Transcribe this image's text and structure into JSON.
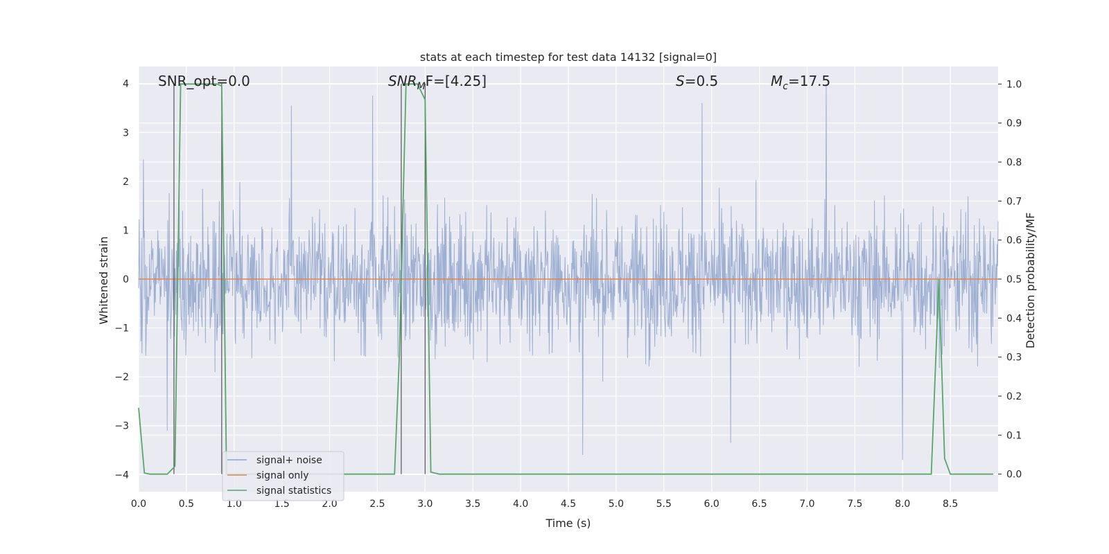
{
  "chart_data": {
    "type": "line",
    "title": "stats at each timestep for test data 14132 [signal=0]",
    "xlabel": "Time (s)",
    "ylabel": "Whitened strain",
    "ylabel_right": "Detection probability/MF",
    "xlim": [
      0.0,
      9.0
    ],
    "ylim": [
      -4.35,
      4.35
    ],
    "ylim_right": [
      -0.045,
      1.045
    ],
    "xticks": [
      "0.0",
      "0.5",
      "1.0",
      "1.5",
      "2.0",
      "2.5",
      "3.0",
      "3.5",
      "4.0",
      "4.5",
      "5.0",
      "5.5",
      "6.0",
      "6.5",
      "7.0",
      "7.5",
      "8.0",
      "8.5"
    ],
    "yticks": [
      "−4",
      "−3",
      "−2",
      "−1",
      "0",
      "1",
      "2",
      "3",
      "4"
    ],
    "yticks_right": [
      "0.0",
      "0.1",
      "0.2",
      "0.3",
      "0.4",
      "0.5",
      "0.6",
      "0.7",
      "0.8",
      "0.9",
      "1.0"
    ],
    "grid": true,
    "legend_position": "lower-left",
    "annotations": {
      "snr_opt": "SNR_opt=0.0",
      "snr_mf_prefix": "SNR",
      "snr_mf_sub": "M",
      "snr_mf_suffix": "F=[4.25]",
      "s_label": "S",
      "s_value": "=0.5",
      "mc_label": "M",
      "mc_sub": "c",
      "mc_value": "=17.5"
    },
    "vertical_lines_x": [
      0.37,
      0.87,
      2.75,
      3.0
    ],
    "series": [
      {
        "name": "signal+ noise",
        "color": "#4c72b0",
        "axis": "left",
        "envelope": {
          "approx_peaks": [
            [
              0.05,
              2.45
            ],
            [
              1.6,
              3.55
            ],
            [
              2.45,
              3.75
            ],
            [
              5.9,
              3.6
            ],
            [
              7.2,
              4.0
            ],
            [
              8.0,
              -3.7
            ],
            [
              0.3,
              -3.1
            ],
            [
              4.65,
              -3.6
            ],
            [
              6.2,
              -3.35
            ]
          ]
        }
      },
      {
        "name": "signal only",
        "color": "#dd8452",
        "axis": "left",
        "x": [
          0.0,
          9.0
        ],
        "y": [
          0.0,
          0.0
        ]
      },
      {
        "name": "signal statistics",
        "color": "#55a868",
        "axis": "right",
        "x": [
          0.0,
          0.06,
          0.12,
          0.3,
          0.38,
          0.44,
          0.82,
          0.87,
          0.92,
          1.0,
          2.5,
          2.68,
          2.73,
          2.8,
          2.92,
          3.0,
          3.06,
          3.15,
          8.3,
          8.38,
          8.44,
          8.5,
          8.95
        ],
        "y": [
          0.17,
          0.003,
          0.0,
          0.0,
          0.02,
          1.0,
          1.0,
          0.995,
          0.0,
          0.0,
          0.0,
          0.0,
          0.3,
          1.0,
          1.0,
          0.96,
          0.005,
          0.0,
          0.0,
          0.5,
          0.04,
          0.0,
          0.0
        ]
      }
    ]
  }
}
